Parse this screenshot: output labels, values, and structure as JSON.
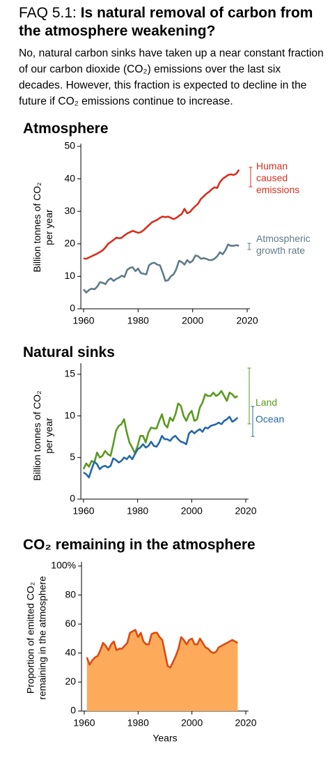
{
  "header": {
    "faq_label": "FAQ 5.1:",
    "title": "Is natural removal of carbon from the atmosphere weakening?",
    "description": "No, natural carbon sinks have taken up a near constant fraction of our carbon dioxide (CO₂) emissions over the last six decades. However, this fraction is expected to decline in the future if CO₂ emissions continue to increase."
  },
  "chart_data": [
    {
      "type": "line",
      "title": "Atmosphere",
      "ylabel": "Billion tonnes of CO₂ per year",
      "x": [
        1960,
        1961,
        1962,
        1963,
        1964,
        1965,
        1966,
        1967,
        1968,
        1969,
        1970,
        1971,
        1972,
        1973,
        1974,
        1975,
        1976,
        1977,
        1978,
        1979,
        1980,
        1981,
        1982,
        1983,
        1984,
        1985,
        1986,
        1987,
        1988,
        1989,
        1990,
        1991,
        1992,
        1993,
        1994,
        1995,
        1996,
        1997,
        1998,
        1999,
        2000,
        2001,
        2002,
        2003,
        2004,
        2005,
        2006,
        2007,
        2008,
        2009,
        2010,
        2011,
        2012,
        2013,
        2014,
        2015,
        2016,
        2017
      ],
      "series": [
        {
          "name": "Human caused emissions",
          "color": "#d62f1e",
          "values": [
            15.5,
            15.4,
            15.8,
            16.2,
            16.6,
            17.0,
            17.5,
            18.0,
            18.9,
            20.0,
            20.6,
            21.2,
            21.9,
            21.7,
            21.9,
            22.6,
            23.2,
            23.6,
            24.0,
            23.7,
            23.4,
            23.6,
            24.2,
            25.0,
            25.8,
            26.6,
            27.0,
            27.4,
            28.0,
            28.4,
            28.2,
            28.4,
            28.0,
            27.6,
            28.0,
            28.6,
            29.2,
            30.8,
            29.4,
            29.8,
            30.8,
            31.6,
            32.4,
            33.8,
            34.6,
            35.4,
            36.0,
            36.8,
            37.4,
            37.2,
            39.0,
            40.0,
            40.6,
            41.2,
            41.4,
            41.2,
            41.6,
            42.8
          ]
        },
        {
          "name": "Atmospheric growth rate",
          "color": "#5e7b89",
          "values": [
            6.0,
            5.0,
            5.8,
            6.2,
            6.0,
            6.8,
            8.2,
            8.0,
            7.6,
            8.8,
            9.4,
            8.6,
            9.2,
            9.6,
            10.2,
            9.8,
            12.0,
            12.6,
            12.8,
            11.6,
            12.4,
            11.0,
            10.8,
            10.6,
            13.4,
            14.0,
            14.2,
            13.6,
            13.4,
            11.2,
            8.6,
            8.8,
            10.0,
            10.6,
            12.2,
            14.8,
            14.4,
            13.6,
            15.0,
            14.2,
            14.8,
            16.4,
            16.2,
            15.4,
            15.6,
            15.4,
            15.0,
            15.0,
            15.4,
            16.2,
            17.4,
            16.8,
            18.0,
            19.8,
            19.4,
            19.4,
            19.6,
            19.4
          ]
        }
      ],
      "xlim": [
        1959,
        2021
      ],
      "xticks": [
        1960,
        1980,
        2000,
        2020
      ],
      "ylim": [
        0,
        50
      ],
      "yticks": [
        0,
        10,
        20,
        30,
        40,
        50
      ]
    },
    {
      "type": "line",
      "title": "Natural sinks",
      "ylabel": "Billion tonnes of CO₂ per year",
      "x": [
        1960,
        1961,
        1962,
        1963,
        1964,
        1965,
        1966,
        1967,
        1968,
        1969,
        1970,
        1971,
        1972,
        1973,
        1974,
        1975,
        1976,
        1977,
        1978,
        1979,
        1980,
        1981,
        1982,
        1983,
        1984,
        1985,
        1986,
        1987,
        1988,
        1989,
        1990,
        1991,
        1992,
        1993,
        1994,
        1995,
        1996,
        1997,
        1998,
        1999,
        2000,
        2001,
        2002,
        2003,
        2004,
        2005,
        2006,
        2007,
        2008,
        2009,
        2010,
        2011,
        2012,
        2013,
        2014,
        2015,
        2016,
        2017
      ],
      "series": [
        {
          "name": "Land",
          "color": "#5a9a1f",
          "values": [
            3.6,
            4.3,
            3.9,
            4.6,
            4.4,
            5.6,
            5.0,
            5.2,
            5.8,
            5.4,
            5.2,
            6.6,
            8.2,
            8.8,
            9.0,
            9.6,
            8.0,
            6.8,
            6.2,
            5.5,
            6.4,
            7.6,
            7.6,
            6.8,
            8.0,
            8.6,
            8.5,
            8.5,
            9.4,
            10.2,
            9.0,
            8.6,
            9.8,
            9.4,
            10.2,
            11.5,
            11.2,
            10.0,
            9.4,
            10.2,
            10.6,
            9.4,
            9.6,
            11.0,
            11.6,
            12.6,
            12.4,
            12.4,
            12.8,
            12.4,
            12.6,
            13.0,
            12.4,
            11.8,
            12.8,
            12.6,
            12.2,
            12.4
          ]
        },
        {
          "name": "Ocean",
          "color": "#2567a8",
          "values": [
            3.2,
            3.0,
            2.6,
            3.6,
            4.5,
            4.2,
            3.6,
            3.9,
            4.0,
            3.8,
            4.0,
            4.9,
            4.7,
            4.4,
            4.6,
            5.0,
            4.8,
            5.2,
            4.8,
            5.4,
            6.0,
            6.2,
            6.6,
            6.2,
            6.4,
            6.9,
            6.4,
            6.3,
            6.8,
            7.6,
            7.2,
            7.2,
            7.0,
            7.4,
            7.6,
            7.2,
            6.9,
            6.8,
            6.6,
            7.9,
            8.2,
            7.9,
            8.2,
            8.4,
            8.1,
            8.6,
            8.5,
            8.8,
            8.9,
            9.0,
            9.2,
            9.0,
            9.4,
            9.6,
            9.9,
            9.3,
            9.5,
            9.8
          ]
        }
      ],
      "xlim": [
        1959,
        2021
      ],
      "xticks": [
        1960,
        1980,
        2000,
        2020
      ],
      "ylim": [
        0,
        16
      ],
      "yticks": [
        0,
        5,
        10,
        15
      ]
    },
    {
      "type": "area",
      "title": "CO₂ remaining in the atmosphere",
      "ylabel": "Proportion of emitted CO₂ remaining in the atmosphere",
      "xlabel": "Years",
      "x": [
        1961,
        1962,
        1963,
        1964,
        1965,
        1966,
        1967,
        1968,
        1969,
        1970,
        1971,
        1972,
        1973,
        1974,
        1975,
        1976,
        1977,
        1978,
        1979,
        1980,
        1981,
        1982,
        1983,
        1984,
        1985,
        1986,
        1987,
        1988,
        1989,
        1990,
        1991,
        1992,
        1993,
        1994,
        1995,
        1996,
        1997,
        1998,
        1999,
        2000,
        2001,
        2002,
        2003,
        2004,
        2005,
        2006,
        2007,
        2008,
        2009,
        2010,
        2011,
        2012,
        2013,
        2014,
        2015,
        2016,
        2017
      ],
      "values": [
        37,
        32,
        35,
        37,
        38,
        42,
        47,
        45,
        42,
        46,
        48,
        42,
        43,
        43,
        45,
        47,
        54,
        55,
        56,
        51,
        54,
        48,
        46,
        46,
        53,
        54,
        54,
        51,
        49,
        40,
        31,
        30,
        34,
        38,
        43,
        51,
        49,
        46,
        49,
        50,
        46,
        46,
        50,
        47,
        44,
        43,
        41,
        40,
        41,
        44,
        45,
        46,
        47,
        48,
        49,
        48,
        47
      ],
      "color": "#dc4a12",
      "fill_color": "#fdab5a",
      "xlim": [
        1959,
        2021
      ],
      "xticks": [
        1960,
        1980,
        2000,
        2020
      ],
      "ylim": [
        0,
        100
      ],
      "yticks": [
        0,
        20,
        40,
        60,
        80,
        {
          "value": 100,
          "label": "100%"
        }
      ]
    }
  ]
}
